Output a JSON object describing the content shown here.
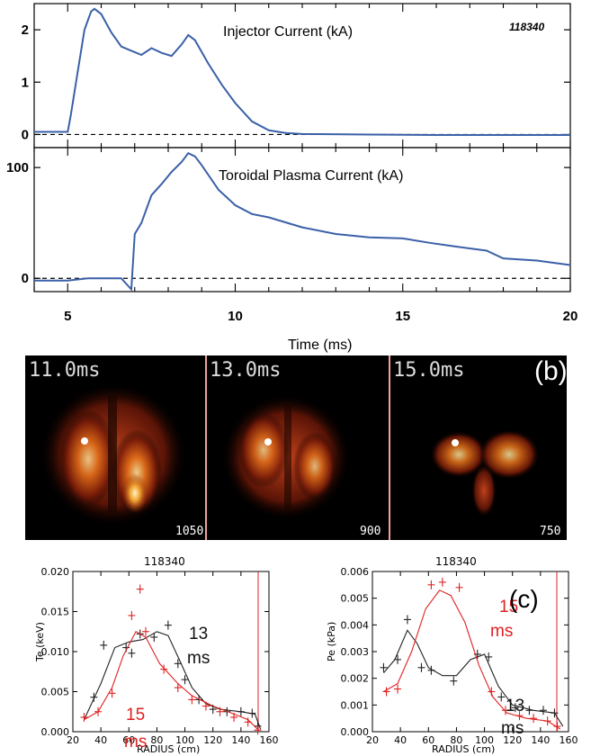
{
  "top_panel": {
    "shot_label": "118340",
    "colors": {
      "trace": "#3a60a8",
      "shot": "#6ab02e"
    },
    "xlabel": "Time (ms)",
    "xticks": [
      "5",
      "10",
      "15",
      "20"
    ]
  },
  "camera_panel": {
    "panel_letter": "(b)",
    "frames": [
      {
        "time": "11.0ms",
        "scale": "1050"
      },
      {
        "time": "13.0ms",
        "scale": "900"
      },
      {
        "time": "15.0ms",
        "scale": "750"
      }
    ]
  },
  "profile_panel": {
    "panel_letter": "(c)",
    "colors": {
      "black": "#222222",
      "red": "#e02020"
    }
  },
  "chart_data": [
    {
      "type": "line",
      "title": "Injector Current (kA)",
      "xlabel": "Time (ms)",
      "xlim": [
        4,
        20
      ],
      "ylim": [
        -0.25,
        2.5
      ],
      "yticks": [
        "0",
        "1",
        "2"
      ],
      "series": [
        {
          "x": [
            4.0,
            5.0,
            5.1,
            5.3,
            5.5,
            5.7,
            5.8,
            6.0,
            6.3,
            6.6,
            6.9,
            7.2,
            7.5,
            7.8,
            8.1,
            8.4,
            8.6,
            8.8,
            9.2,
            9.6,
            10.0,
            10.5,
            11.0,
            11.5,
            12.0,
            14.0,
            16.0,
            18.0,
            20.0
          ],
          "values": [
            0.05,
            0.05,
            0.4,
            1.2,
            2.0,
            2.35,
            2.4,
            2.3,
            1.95,
            1.68,
            1.6,
            1.52,
            1.65,
            1.56,
            1.5,
            1.72,
            1.9,
            1.8,
            1.35,
            0.95,
            0.6,
            0.25,
            0.08,
            0.03,
            0.01,
            0.0,
            -0.01,
            -0.01,
            -0.01
          ]
        }
      ]
    },
    {
      "type": "line",
      "title": "Toroidal Plasma Current (kA)",
      "xlabel": "Time (ms)",
      "xlim": [
        4,
        20
      ],
      "ylim": [
        -12,
        118
      ],
      "yticks": [
        "0",
        "100"
      ],
      "series": [
        {
          "x": [
            4.0,
            5.0,
            5.6,
            6.6,
            6.9,
            7.0,
            7.2,
            7.5,
            7.8,
            8.1,
            8.4,
            8.6,
            8.8,
            9.0,
            9.5,
            10.0,
            10.5,
            11.0,
            12.0,
            13.0,
            14.0,
            15.0,
            15.8,
            16.5,
            17.5,
            18.0,
            19.0,
            20.0
          ],
          "values": [
            -2,
            -2,
            0,
            0,
            -10,
            40,
            50,
            75,
            85,
            96,
            105,
            113,
            110,
            102,
            80,
            66,
            58,
            55,
            46,
            40,
            37,
            36,
            32,
            29,
            25,
            18,
            16,
            12
          ]
        }
      ]
    },
    {
      "type": "line",
      "title": "118340",
      "xlabel": "RADIUS (cm)",
      "ylabel": "Te (keV)",
      "xlim": [
        20,
        160
      ],
      "ylim": [
        0,
        0.02
      ],
      "xticks": [
        "20",
        "40",
        "60",
        "80",
        "100",
        "120",
        "140",
        "160"
      ],
      "yticks": [
        "0.000",
        "0.005",
        "0.010",
        "0.015",
        "0.020"
      ],
      "annotations": [
        "13 ms",
        "15 ms"
      ],
      "series": [
        {
          "name": "13 ms",
          "points": [
            [
              35,
              0.0043
            ],
            [
              42,
              0.0108
            ],
            [
              58,
              0.0105
            ],
            [
              62,
              0.0098
            ],
            [
              68,
              0.0122
            ],
            [
              78,
              0.0118
            ],
            [
              88,
              0.0133
            ],
            [
              95,
              0.0085
            ],
            [
              100,
              0.0065
            ],
            [
              110,
              0.004
            ],
            [
              120,
              0.0028
            ],
            [
              130,
              0.0025
            ],
            [
              140,
              0.0025
            ],
            [
              148,
              0.0023
            ],
            [
              152,
              0.0007
            ]
          ],
          "fit": [
            [
              28,
              0.0015
            ],
            [
              40,
              0.006
            ],
            [
              50,
              0.0105
            ],
            [
              60,
              0.0112
            ],
            [
              70,
              0.0115
            ],
            [
              80,
              0.0125
            ],
            [
              88,
              0.012
            ],
            [
              96,
              0.009
            ],
            [
              105,
              0.0055
            ],
            [
              115,
              0.0035
            ],
            [
              125,
              0.0028
            ],
            [
              140,
              0.0025
            ],
            [
              150,
              0.0022
            ],
            [
              154,
              0.0003
            ]
          ]
        },
        {
          "name": "15 ms",
          "points": [
            [
              28,
              0.0018
            ],
            [
              38,
              0.0025
            ],
            [
              48,
              0.0048
            ],
            [
              62,
              0.0145
            ],
            [
              68,
              0.0178
            ],
            [
              72,
              0.0125
            ],
            [
              85,
              0.0078
            ],
            [
              95,
              0.0055
            ],
            [
              105,
              0.004
            ],
            [
              115,
              0.0032
            ],
            [
              125,
              0.0025
            ],
            [
              135,
              0.0018
            ],
            [
              145,
              0.0012
            ],
            [
              152,
              0.0002
            ]
          ],
          "fit": [
            [
              28,
              0.0015
            ],
            [
              38,
              0.0025
            ],
            [
              48,
              0.0055
            ],
            [
              56,
              0.0095
            ],
            [
              65,
              0.0125
            ],
            [
              72,
              0.0118
            ],
            [
              82,
              0.0085
            ],
            [
              95,
              0.006
            ],
            [
              105,
              0.0045
            ],
            [
              120,
              0.0032
            ],
            [
              135,
              0.0022
            ],
            [
              145,
              0.0015
            ],
            [
              152,
              0.0003
            ]
          ]
        }
      ]
    },
    {
      "type": "line",
      "title": "118340",
      "xlabel": "RADIUS (cm)",
      "ylabel": "Pe (kPa)",
      "xlim": [
        20,
        160
      ],
      "ylim": [
        0,
        0.006
      ],
      "xticks": [
        "20",
        "40",
        "60",
        "80",
        "100",
        "120",
        "140",
        "160"
      ],
      "yticks": [
        "0.000",
        "0.001",
        "0.002",
        "0.003",
        "0.004",
        "0.005",
        "0.006"
      ],
      "annotations": [
        "15 ms",
        "13 ms"
      ],
      "series": [
        {
          "name": "13 ms",
          "points": [
            [
              28,
              0.0024
            ],
            [
              38,
              0.0027
            ],
            [
              45,
              0.0042
            ],
            [
              55,
              0.0024
            ],
            [
              62,
              0.0023
            ],
            [
              78,
              0.0019
            ],
            [
              95,
              0.0029
            ],
            [
              103,
              0.0028
            ],
            [
              112,
              0.0013
            ],
            [
              122,
              0.0009
            ],
            [
              132,
              0.0008
            ],
            [
              142,
              0.0008
            ],
            [
              150,
              0.0007
            ]
          ],
          "fit": [
            [
              28,
              0.0022
            ],
            [
              36,
              0.0027
            ],
            [
              45,
              0.0038
            ],
            [
              52,
              0.0033
            ],
            [
              60,
              0.0024
            ],
            [
              70,
              0.0021
            ],
            [
              80,
              0.0021
            ],
            [
              90,
              0.0027
            ],
            [
              100,
              0.0029
            ],
            [
              110,
              0.0017
            ],
            [
              120,
              0.001
            ],
            [
              135,
              0.0008
            ],
            [
              150,
              0.0007
            ],
            [
              156,
              0.0002
            ]
          ]
        },
        {
          "name": "15 ms",
          "points": [
            [
              30,
              0.0015
            ],
            [
              38,
              0.0016
            ],
            [
              62,
              0.0055
            ],
            [
              70,
              0.0056
            ],
            [
              82,
              0.0054
            ],
            [
              105,
              0.0015
            ],
            [
              115,
              0.0008
            ],
            [
              125,
              0.0006
            ],
            [
              135,
              0.0005
            ],
            [
              145,
              0.0004
            ],
            [
              152,
              0.0002
            ]
          ],
          "fit": [
            [
              28,
              0.0015
            ],
            [
              38,
              0.0018
            ],
            [
              48,
              0.003
            ],
            [
              58,
              0.0046
            ],
            [
              68,
              0.0053
            ],
            [
              76,
              0.0051
            ],
            [
              86,
              0.0041
            ],
            [
              96,
              0.0025
            ],
            [
              106,
              0.0013
            ],
            [
              116,
              0.0007
            ],
            [
              130,
              0.0005
            ],
            [
              145,
              0.0004
            ],
            [
              154,
              0.0001
            ]
          ]
        }
      ]
    }
  ]
}
